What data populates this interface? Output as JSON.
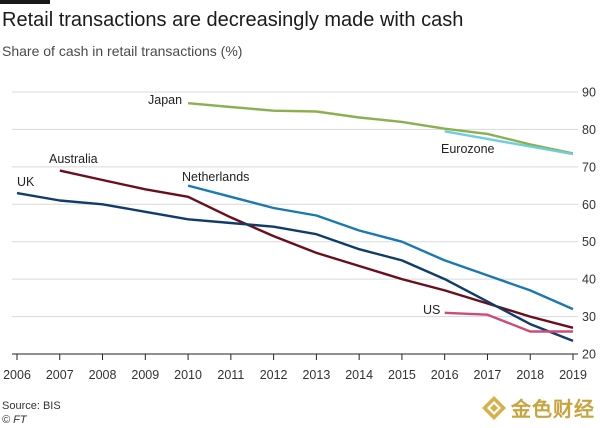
{
  "header": {
    "title": "Retail transactions are decreasingly made with cash",
    "subtitle": "Share of cash in retail transactions (%)"
  },
  "footer": {
    "source": "Source: BIS",
    "copyright": "© FT",
    "watermark": "金色财经"
  },
  "chart_data": {
    "type": "line",
    "title": "Retail transactions are decreasingly made with cash",
    "subtitle": "Share of cash in retail transactions (%)",
    "xlabel": "",
    "ylabel": "",
    "x_ticks": [
      2006,
      2007,
      2008,
      2009,
      2010,
      2011,
      2012,
      2013,
      2014,
      2015,
      2016,
      2017,
      2018,
      2019
    ],
    "y_ticks": [
      20,
      30,
      40,
      50,
      60,
      70,
      80,
      90
    ],
    "xlim": [
      2006,
      2019
    ],
    "ylim": [
      20,
      90
    ],
    "y_axis_side": "right",
    "grid": true,
    "series": [
      {
        "name": "Japan",
        "color": "#8ab04f",
        "x": [
          2010,
          2011,
          2012,
          2013,
          2014,
          2015,
          2016,
          2017,
          2018,
          2019
        ],
        "y": [
          87,
          86,
          85,
          84.8,
          83.2,
          82,
          80.2,
          78.8,
          76,
          73.6
        ]
      },
      {
        "name": "Eurozone",
        "color": "#6cd0dc",
        "x": [
          2016,
          2019
        ],
        "y": [
          79.5,
          73.4
        ]
      },
      {
        "name": "Netherlands",
        "color": "#1a79b3",
        "x": [
          2010,
          2011,
          2012,
          2013,
          2014,
          2015,
          2016,
          2017,
          2018,
          2019
        ],
        "y": [
          65,
          62,
          59,
          57,
          53,
          50,
          45,
          41,
          37,
          32
        ]
      },
      {
        "name": "Australia",
        "color": "#6b0d1a",
        "x": [
          2007,
          2008,
          2009,
          2010,
          2011,
          2012,
          2013,
          2014,
          2015,
          2016,
          2017,
          2018,
          2019
        ],
        "y": [
          69,
          66.5,
          64,
          62,
          56.5,
          51.5,
          47,
          43.5,
          40,
          37,
          33.5,
          30,
          27
        ]
      },
      {
        "name": "UK",
        "color": "#0f3d6b",
        "x": [
          2006,
          2007,
          2008,
          2009,
          2010,
          2011,
          2012,
          2013,
          2014,
          2015,
          2016,
          2017,
          2018,
          2019
        ],
        "y": [
          63,
          61,
          60,
          58,
          56,
          55,
          54,
          52,
          48,
          45,
          40,
          34,
          28,
          23.5
        ]
      },
      {
        "name": "US",
        "color": "#cc4b79",
        "x": [
          2016,
          2017,
          2018,
          2019
        ],
        "y": [
          31,
          30.5,
          26,
          26
        ]
      }
    ]
  }
}
